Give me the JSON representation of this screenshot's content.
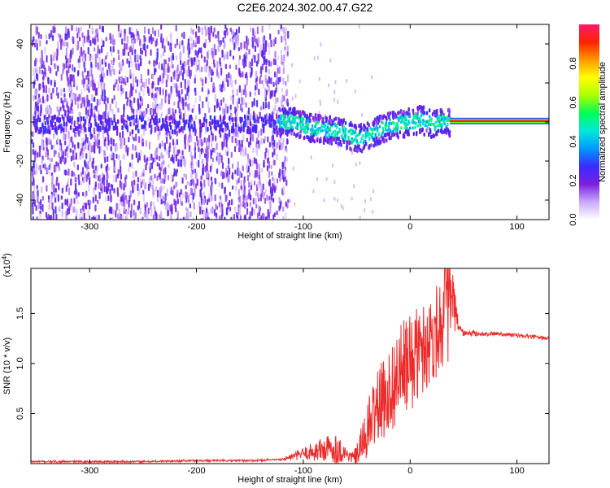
{
  "title": "C2E6.2024.302.00.47.G22",
  "chart_data": [
    {
      "type": "heatmap",
      "xlabel": "Height of straight line (km)",
      "ylabel": "Frequency (Hz)",
      "xlim": [
        -355,
        130
      ],
      "ylim": [
        -50,
        50
      ],
      "xticks": [
        -300,
        -200,
        -100,
        0,
        100
      ],
      "yticks": [
        -40,
        -20,
        0,
        20,
        40
      ],
      "colorbar": {
        "label": "Normalized spectral amplitude",
        "range": [
          0,
          1
        ],
        "ticks": [
          "0.0",
          "0.2",
          "0.4",
          "0.6",
          "0.8"
        ],
        "ticks_values": [
          0.0,
          0.2,
          0.4,
          0.6,
          0.8
        ],
        "colors": [
          "#ffffff",
          "#c9a8ff",
          "#7a1fe0",
          "#3a2bff",
          "#0099ff",
          "#00e8d8",
          "#00ff55",
          "#aaff00",
          "#ffff00",
          "#ff9900",
          "#ff2200",
          "#ff1a6e"
        ]
      },
      "regions": [
        {
          "x": [
            -355,
            -125
          ],
          "description_level": 0.2,
          "signal_center_hz": 0,
          "signal_level": 0.25
        },
        {
          "x": [
            -125,
            37
          ],
          "signal_track_hz": [
            [
              -125,
              1
            ],
            [
              -110,
              1
            ],
            [
              -95,
              -2
            ],
            [
              -80,
              -3
            ],
            [
              -65,
              -4
            ],
            [
              -50,
              -8
            ],
            [
              -40,
              -6
            ],
            [
              -30,
              -3
            ],
            [
              -20,
              -1
            ],
            [
              -10,
              0
            ],
            [
              0,
              1
            ],
            [
              10,
              2
            ],
            [
              20,
              0
            ],
            [
              30,
              1
            ],
            [
              37,
              1
            ]
          ],
          "signal_level": 0.45
        },
        {
          "x": [
            37,
            130
          ],
          "signal_center_hz": 0.5,
          "signal_level": 1.0
        }
      ]
    },
    {
      "type": "line",
      "xlabel": "Height of straight line (km)",
      "ylabel": "SNR (10 * v/v)",
      "y_multiplier": "(x10",
      "y_multiplier_exp": "4",
      "y_multiplier_close": ")",
      "xlim": [
        -355,
        130
      ],
      "ylim": [
        0,
        1.95
      ],
      "xticks": [
        -300,
        -200,
        -100,
        0,
        100
      ],
      "yticks": [
        "0.5",
        "1.0",
        "1.5"
      ],
      "yticks_values": [
        0.5,
        1.0,
        1.5
      ],
      "color": "#ee2b2b",
      "series": [
        {
          "x": [
            -355,
            -300,
            -250,
            -200,
            -150,
            -120,
            -110,
            -100,
            -90,
            -80,
            -70,
            -60,
            -55,
            -50,
            -45,
            -40,
            -35,
            -30,
            -25,
            -20,
            -15,
            -10,
            -5,
            0,
            5,
            10,
            15,
            20,
            25,
            30,
            35,
            38,
            42,
            45,
            50,
            60,
            70,
            80,
            90,
            100,
            110,
            120,
            130
          ],
          "y": [
            0.02,
            0.02,
            0.02,
            0.03,
            0.03,
            0.04,
            0.07,
            0.1,
            0.12,
            0.14,
            0.15,
            0.1,
            0.06,
            0.08,
            0.2,
            0.32,
            0.48,
            0.58,
            0.64,
            0.72,
            0.8,
            0.9,
            0.95,
            1.0,
            1.08,
            1.12,
            1.2,
            1.25,
            1.35,
            1.45,
            1.55,
            1.65,
            1.5,
            1.38,
            1.3,
            1.3,
            1.29,
            1.3,
            1.29,
            1.28,
            1.27,
            1.26,
            1.25
          ],
          "noise": [
            0.01,
            0.01,
            0.01,
            0.01,
            0.01,
            0.01,
            0.04,
            0.06,
            0.1,
            0.14,
            0.16,
            0.08,
            0.05,
            0.1,
            0.2,
            0.28,
            0.35,
            0.38,
            0.4,
            0.42,
            0.45,
            0.48,
            0.5,
            0.5,
            0.48,
            0.46,
            0.46,
            0.45,
            0.48,
            0.5,
            0.55,
            0.6,
            0.25,
            0.06,
            0.03,
            0.03,
            0.02,
            0.02,
            0.02,
            0.02,
            0.02,
            0.02,
            0.02
          ]
        }
      ]
    }
  ]
}
